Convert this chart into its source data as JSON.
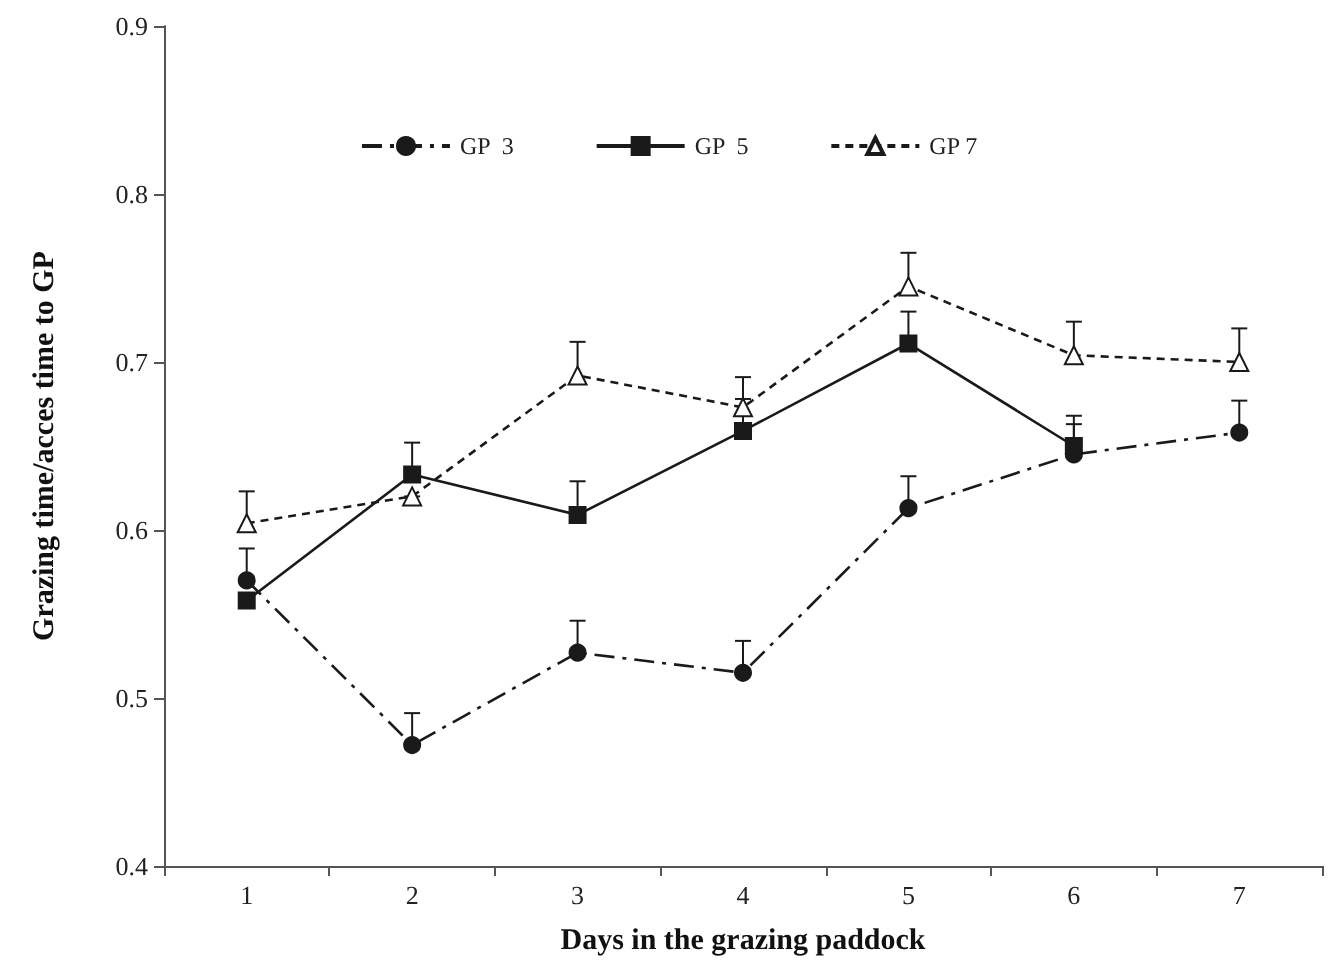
{
  "chart_data": {
    "type": "line",
    "xlabel": "Days in the grazing paddock",
    "ylabel": "Grazing time/acces time to GP",
    "categories": [
      "1",
      "2",
      "3",
      "4",
      "5",
      "6",
      "7"
    ],
    "ylim": [
      0.4,
      0.9
    ],
    "yticks": [
      0.4,
      0.5,
      0.6,
      0.7,
      0.8,
      0.9
    ],
    "grid": false,
    "legend": "top",
    "series": [
      {
        "name": "GP  3",
        "color": "#1a1a1a",
        "marker": "circle",
        "line_style": "dashdot",
        "values": [
          0.57,
          0.472,
          0.527,
          0.515,
          0.613,
          0.645,
          0.658
        ],
        "errors": [
          [
            0.57,
            0.589
          ],
          [
            0.472,
            0.491
          ],
          [
            0.527,
            0.546
          ],
          [
            0.515,
            0.534
          ],
          [
            0.613,
            0.632
          ],
          [
            0.645,
            0.663
          ],
          [
            0.658,
            0.677
          ]
        ]
      },
      {
        "name": "GP  5",
        "color": "#1a1a1a",
        "marker": "square",
        "line_style": "solid",
        "values": [
          0.558,
          0.633,
          0.609,
          0.659,
          0.711,
          0.65,
          null
        ],
        "errors": [
          null,
          [
            0.633,
            0.652
          ],
          [
            0.609,
            0.629
          ],
          [
            0.659,
            0.678
          ],
          [
            0.711,
            0.73
          ],
          [
            0.65,
            0.668
          ],
          null
        ]
      },
      {
        "name": "GP 7",
        "color": "#1a1a1a",
        "marker": "triangle",
        "line_style": "dashed",
        "values": [
          0.604,
          0.62,
          0.692,
          0.673,
          0.745,
          0.704,
          0.7
        ],
        "errors": [
          [
            0.604,
            0.623
          ],
          [
            0.62,
            0.62
          ],
          [
            0.692,
            0.712
          ],
          [
            0.673,
            0.691
          ],
          [
            0.745,
            0.765
          ],
          [
            0.704,
            0.724
          ],
          [
            0.7,
            0.72
          ]
        ]
      }
    ]
  }
}
